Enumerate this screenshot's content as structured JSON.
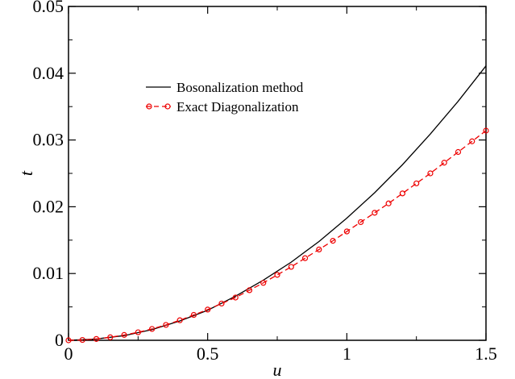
{
  "chart_data": {
    "type": "line",
    "xlabel": "u",
    "ylabel": "t",
    "xlim": [
      0,
      1.5
    ],
    "ylim": [
      0,
      0.05
    ],
    "grid": false,
    "legend_position": "upper-left",
    "x_ticks": [
      {
        "value": 0,
        "label": "0"
      },
      {
        "value": 0.5,
        "label": "0.5"
      },
      {
        "value": 1,
        "label": "1"
      },
      {
        "value": 1.5,
        "label": "1.5"
      }
    ],
    "y_ticks": [
      {
        "value": 0,
        "label": "0"
      },
      {
        "value": 0.01,
        "label": "0.01"
      },
      {
        "value": 0.02,
        "label": "0.02"
      },
      {
        "value": 0.03,
        "label": "0.03"
      },
      {
        "value": 0.04,
        "label": "0.04"
      },
      {
        "value": 0.05,
        "label": "0.05"
      }
    ],
    "series": [
      {
        "name": "Bosonalization method",
        "color": "#000000",
        "style": "solid",
        "marker": "none",
        "x": [
          0,
          0.1,
          0.2,
          0.3,
          0.4,
          0.5,
          0.6,
          0.7,
          0.8,
          0.9,
          1.0,
          1.1,
          1.2,
          1.3,
          1.4,
          1.5
        ],
        "y": [
          0,
          0.0002,
          0.0007,
          0.0016,
          0.0029,
          0.0045,
          0.0066,
          0.009,
          0.0117,
          0.0148,
          0.0183,
          0.0221,
          0.0263,
          0.0309,
          0.0358,
          0.0411
        ]
      },
      {
        "name": "Exact Diagonalization",
        "color": "#ee0000",
        "style": "dashed",
        "marker": "circle",
        "x": [
          0,
          0.05,
          0.1,
          0.15,
          0.2,
          0.25,
          0.3,
          0.35,
          0.4,
          0.45,
          0.5,
          0.55,
          0.6,
          0.65,
          0.7,
          0.75,
          0.8,
          0.85,
          0.9,
          0.95,
          1.0,
          1.05,
          1.1,
          1.15,
          1.2,
          1.25,
          1.3,
          1.35,
          1.4,
          1.45,
          1.5
        ],
        "y": [
          0,
          5e-05,
          0.0002,
          0.00045,
          0.0008,
          0.0012,
          0.0017,
          0.0023,
          0.003,
          0.0038,
          0.0046,
          0.0055,
          0.0064,
          0.0075,
          0.0086,
          0.0098,
          0.011,
          0.0123,
          0.0136,
          0.0149,
          0.0163,
          0.0177,
          0.0191,
          0.0205,
          0.022,
          0.0235,
          0.025,
          0.0266,
          0.0282,
          0.0298,
          0.0314
        ]
      }
    ]
  }
}
